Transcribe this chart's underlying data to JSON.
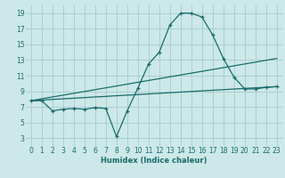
{
  "background_color": "#cce8e8",
  "grid_color": "#aacfcf",
  "line_color": "#1a6b6b",
  "xlabel": "Humidex (Indice chaleur)",
  "xlim": [
    -0.5,
    23.5
  ],
  "ylim": [
    2,
    20
  ],
  "xticks": [
    0,
    1,
    2,
    3,
    4,
    5,
    6,
    7,
    8,
    9,
    10,
    11,
    12,
    13,
    14,
    15,
    16,
    17,
    18,
    19,
    20,
    21,
    22,
    23
  ],
  "yticks": [
    3,
    5,
    7,
    9,
    11,
    13,
    15,
    17,
    19
  ],
  "series1_x": [
    0,
    1,
    2,
    3,
    4,
    5,
    6,
    7,
    8,
    9,
    10,
    11,
    12,
    13,
    14,
    15,
    16,
    17,
    18,
    19,
    20,
    21,
    22,
    23
  ],
  "series1_y": [
    7.8,
    7.8,
    6.5,
    6.7,
    6.8,
    6.7,
    6.9,
    6.8,
    3.2,
    6.5,
    9.4,
    12.5,
    14.0,
    17.5,
    19.0,
    19.0,
    18.5,
    16.2,
    13.2,
    10.8,
    9.3,
    9.3,
    9.5,
    9.6
  ],
  "series2_x": [
    0,
    23
  ],
  "series2_y": [
    7.8,
    13.2
  ],
  "series3_x": [
    0,
    23
  ],
  "series3_y": [
    7.8,
    9.6
  ],
  "xlabel_fontsize": 6,
  "tick_fontsize": 5.5
}
